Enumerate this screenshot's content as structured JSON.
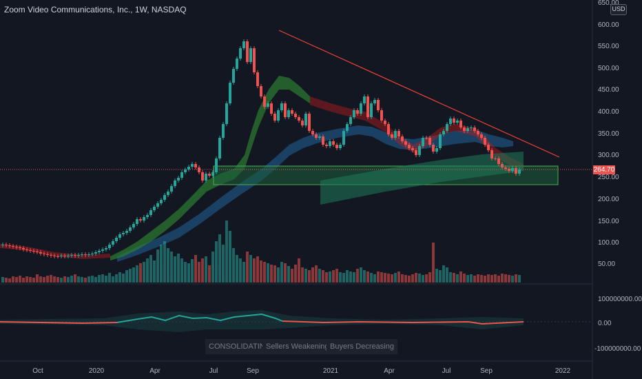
{
  "header": {
    "title": "Zoom Video Communications, Inc., 1W, NASDAQ",
    "currency": "USD"
  },
  "price_axis": {
    "ticks": [
      "650.00",
      "600.00",
      "550.00",
      "500.00",
      "450.00",
      "400.00",
      "350.00",
      "300.00",
      "250.00",
      "200.00",
      "150.00",
      "100.00",
      "50.00"
    ],
    "last_price": "264.70"
  },
  "oscillator_axis": {
    "ticks": [
      "100000000.00",
      "0.00",
      "-100000000.00"
    ]
  },
  "time_axis": {
    "labels": [
      "Oct",
      "2020",
      "Apr",
      "Jul",
      "Sep",
      "2021",
      "Apr",
      "Jul",
      "Sep",
      "2022"
    ]
  },
  "status_pills": [
    "CONSOLIDATING",
    "Sellers Weakening",
    "Buyers Decreasing"
  ],
  "colors": {
    "background": "#131722",
    "up": "#26a69a",
    "down": "#ef5350",
    "trendline": "#f44336",
    "zone": "#1b5e3a",
    "ribbon_blue": "#1e4f7a",
    "ribbon_green": "#2e7d32"
  }
}
